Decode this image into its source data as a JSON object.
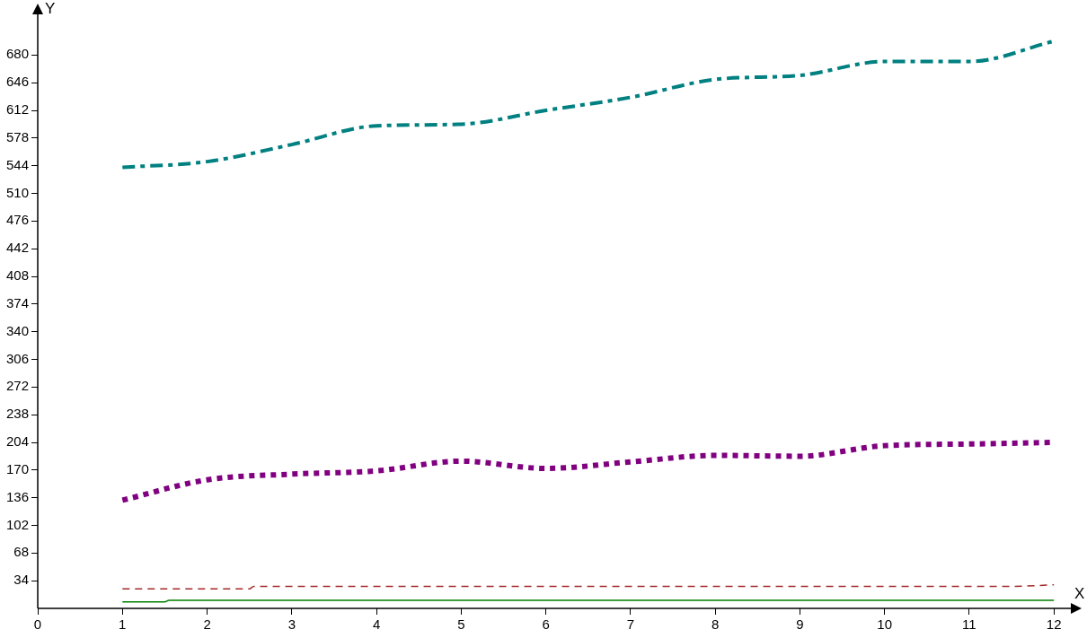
{
  "chart_data": {
    "type": "line",
    "xlabel": "X",
    "ylabel": "Y",
    "x": [
      1,
      2,
      3,
      4,
      5,
      6,
      7,
      8,
      9,
      10,
      11,
      12
    ],
    "xlim": [
      0,
      12.2
    ],
    "xticks": [
      0,
      1,
      2,
      3,
      4,
      5,
      6,
      7,
      8,
      9,
      10,
      11,
      12
    ],
    "ylim": [
      0,
      730
    ],
    "yticks": [
      34,
      68,
      102,
      136,
      170,
      204,
      238,
      272,
      306,
      340,
      374,
      408,
      442,
      476,
      510,
      544,
      578,
      612,
      646,
      680
    ],
    "grid": false,
    "legend": false,
    "marker": "none",
    "series": [
      {
        "color": "#008080",
        "line_style": "dashdot",
        "values": [
          542,
          549,
          570,
          593,
          595,
          612,
          628,
          650,
          655,
          672,
          672,
          697
        ]
      },
      {
        "color": "#800080",
        "line_style": "dotted",
        "values": [
          133,
          158,
          165,
          169,
          181,
          172,
          180,
          188,
          187,
          200,
          202,
          204
        ]
      },
      {
        "color": "#a52a2a",
        "line_style": "dashed",
        "x": [
          1,
          2.5,
          2.55,
          11.5,
          12
        ],
        "values": [
          24,
          24,
          27,
          27,
          29
        ]
      },
      {
        "color": "#008000",
        "line_style": "solid",
        "x": [
          1,
          1.5,
          1.55,
          12
        ],
        "values": [
          8,
          8,
          10,
          10
        ]
      }
    ]
  }
}
